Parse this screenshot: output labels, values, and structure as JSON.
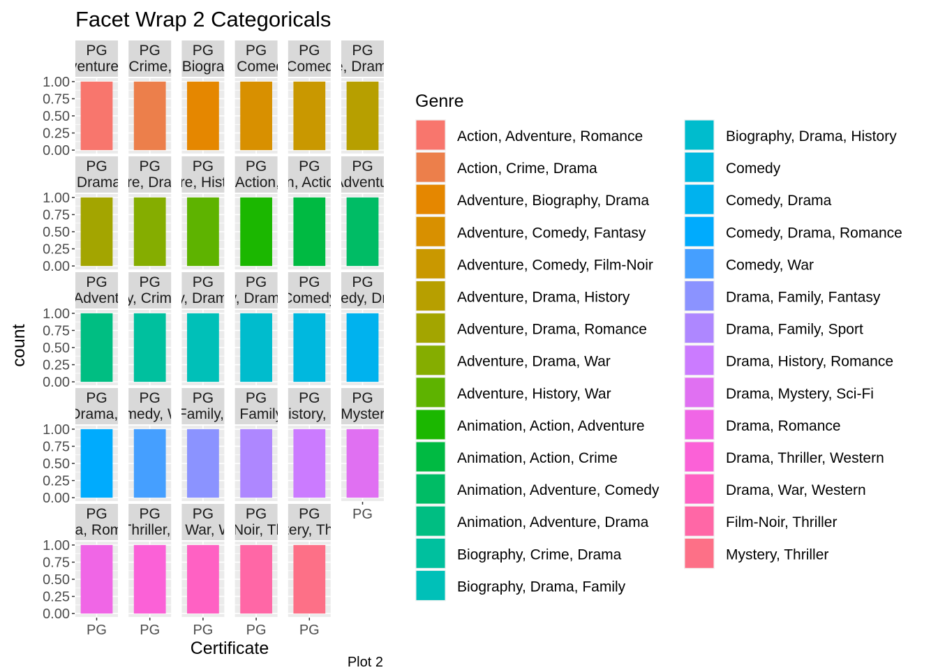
{
  "chart_data": {
    "type": "bar",
    "title": "Facet Wrap 2 Categoricals",
    "xlabel": "Certificate",
    "ylabel": "count",
    "caption": "Plot 2",
    "facet_by": [
      "Certificate",
      "Genre"
    ],
    "ylim": [
      0,
      1
    ],
    "y_ticks": [
      "0.00",
      "0.25",
      "0.50",
      "0.75",
      "1.00"
    ],
    "x_tick_label": "PG",
    "grid": true,
    "legend": {
      "title": "Genre",
      "placement": "right",
      "columns": 2
    },
    "facets": [
      {
        "certificate": "PG",
        "genre": "Action, Adventure, Romance",
        "count": 1,
        "color": "#F8766D"
      },
      {
        "certificate": "PG",
        "genre": "Action, Crime, Drama",
        "count": 1,
        "color": "#EC7F4B"
      },
      {
        "certificate": "PG",
        "genre": "Adventure, Biography, Drama",
        "count": 1,
        "color": "#E58700"
      },
      {
        "certificate": "PG",
        "genre": "Adventure, Comedy, Fantasy",
        "count": 1,
        "color": "#D89000"
      },
      {
        "certificate": "PG",
        "genre": "Adventure, Comedy, Film-Noir",
        "count": 1,
        "color": "#C99800"
      },
      {
        "certificate": "PG",
        "genre": "Adventure, Drama, History",
        "count": 1,
        "color": "#B79F00"
      },
      {
        "certificate": "PG",
        "genre": "Adventure, Drama, Romance",
        "count": 1,
        "color": "#A3A500"
      },
      {
        "certificate": "PG",
        "genre": "Adventure, Drama, War",
        "count": 1,
        "color": "#85AD00"
      },
      {
        "certificate": "PG",
        "genre": "Adventure, History, War",
        "count": 1,
        "color": "#5EB300"
      },
      {
        "certificate": "PG",
        "genre": "Animation, Action, Adventure",
        "count": 1,
        "color": "#1BB700"
      },
      {
        "certificate": "PG",
        "genre": "Animation, Action, Crime",
        "count": 1,
        "color": "#00BA42"
      },
      {
        "certificate": "PG",
        "genre": "Animation, Adventure, Comedy",
        "count": 1,
        "color": "#00BC65"
      },
      {
        "certificate": "PG",
        "genre": "Animation, Adventure, Drama",
        "count": 1,
        "color": "#00BE82"
      },
      {
        "certificate": "PG",
        "genre": "Biography, Crime, Drama",
        "count": 1,
        "color": "#00C09E"
      },
      {
        "certificate": "PG",
        "genre": "Biography, Drama, Family",
        "count": 1,
        "color": "#00C0B8"
      },
      {
        "certificate": "PG",
        "genre": "Biography, Drama, History",
        "count": 1,
        "color": "#00BCCD"
      },
      {
        "certificate": "PG",
        "genre": "Comedy",
        "count": 1,
        "color": "#00B8DE"
      },
      {
        "certificate": "PG",
        "genre": "Comedy, Drama",
        "count": 1,
        "color": "#00B2EE"
      },
      {
        "certificate": "PG",
        "genre": "Comedy, Drama, Romance",
        "count": 1,
        "color": "#00ABFD"
      },
      {
        "certificate": "PG",
        "genre": "Comedy, War",
        "count": 1,
        "color": "#459FFF"
      },
      {
        "certificate": "PG",
        "genre": "Drama, Family, Fantasy",
        "count": 1,
        "color": "#8B93FF"
      },
      {
        "certificate": "PG",
        "genre": "Drama, Family, Sport",
        "count": 1,
        "color": "#AE87FF"
      },
      {
        "certificate": "PG",
        "genre": "Drama, History, Romance",
        "count": 1,
        "color": "#CB7BFF"
      },
      {
        "certificate": "PG",
        "genre": "Drama, Mystery, Sci-Fi",
        "count": 1,
        "color": "#E070F2"
      },
      {
        "certificate": "PG",
        "genre": "Drama, Romance",
        "count": 1,
        "color": "#F066E6"
      },
      {
        "certificate": "PG",
        "genre": "Drama, Thriller, Western",
        "count": 1,
        "color": "#FB61D7"
      },
      {
        "certificate": "PG",
        "genre": "Drama, War, Western",
        "count": 1,
        "color": "#FF61C3"
      },
      {
        "certificate": "PG",
        "genre": "Film-Noir, Thriller",
        "count": 1,
        "color": "#FF67A6"
      },
      {
        "certificate": "PG",
        "genre": "Mystery, Thriller",
        "count": 1,
        "color": "#FD7087"
      }
    ]
  },
  "colors": {
    "strip_bg": "#D9D9D9",
    "panel_bg": "#EBEBEB",
    "grid": "#FFFFFF",
    "axis_text": "#4D4D4D",
    "text": "#1A1A1A"
  }
}
